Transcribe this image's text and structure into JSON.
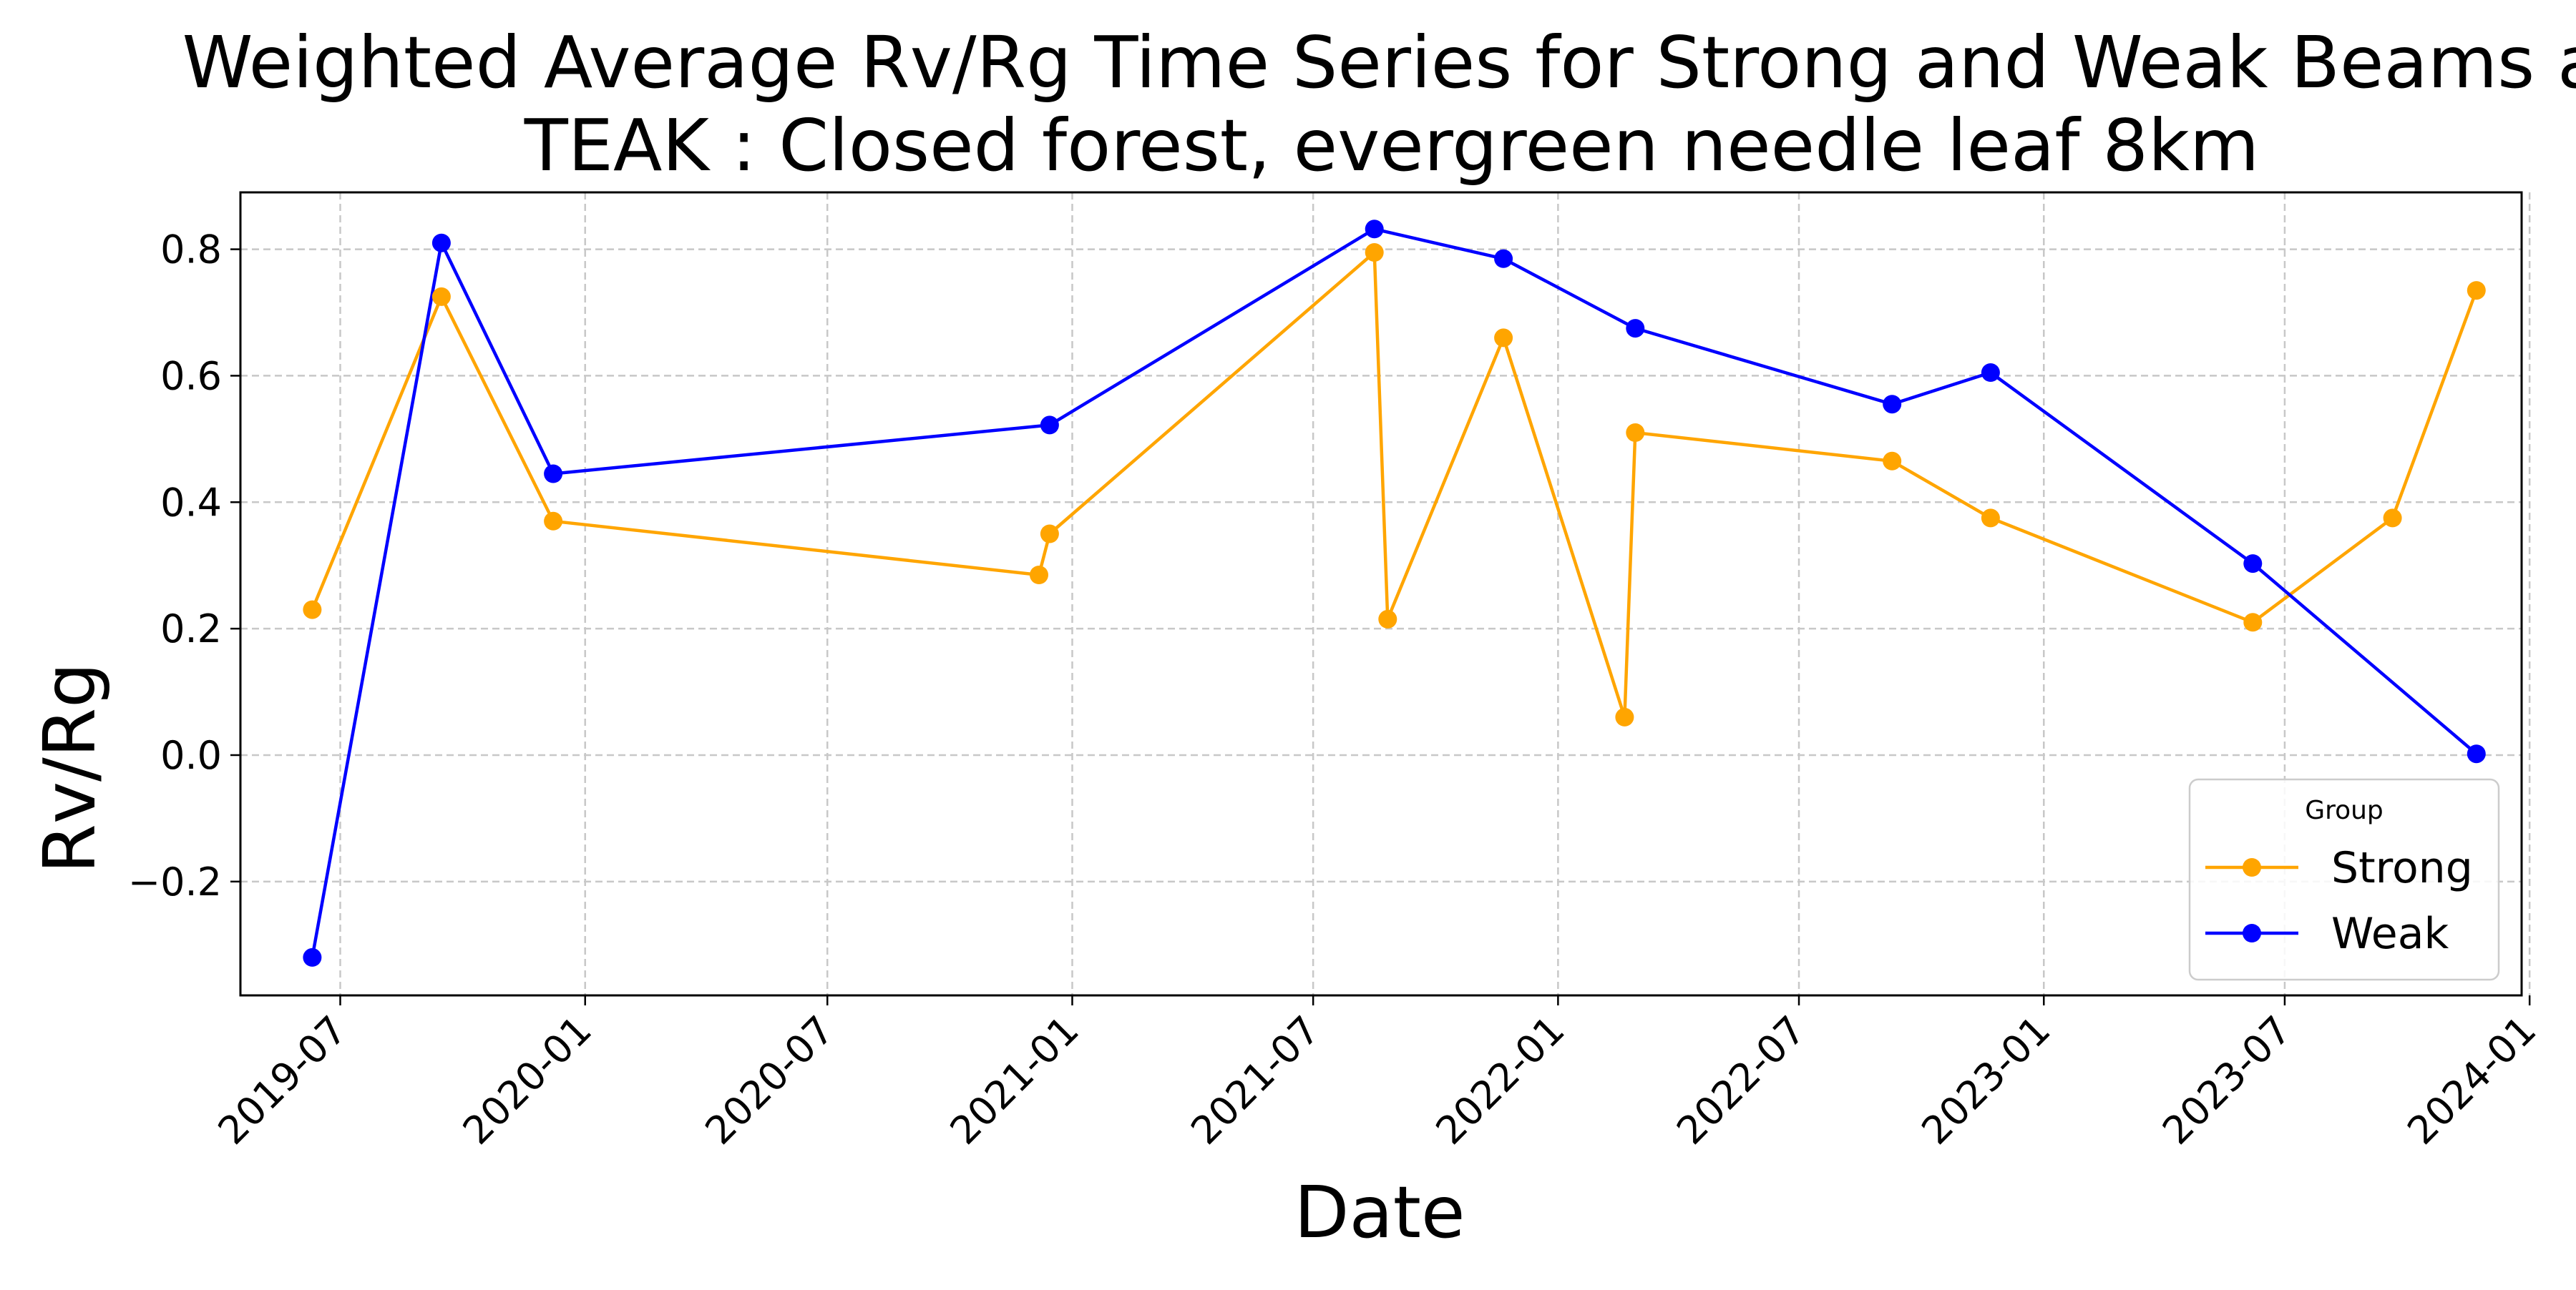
{
  "chart_data": {
    "type": "line",
    "title": "Weighted Average Rv/Rg Time Series for Strong and Weak Beams a",
    "subtitle": "TEAK : Closed forest, evergreen needle leaf 8km",
    "xlabel": "Date",
    "ylabel": "Rv/Rg",
    "xlim": [
      "2019-04-17",
      "2023-12-26"
    ],
    "ylim": [
      -0.38,
      0.89
    ],
    "x_ticks": [
      "2019-07-01",
      "2020-01-01",
      "2020-07-01",
      "2021-01-01",
      "2021-07-01",
      "2022-01-01",
      "2022-07-01",
      "2023-01-01",
      "2023-07-01",
      "2024-01-01"
    ],
    "x_tick_labels": [
      "2019-07",
      "2020-01",
      "2020-07",
      "2021-01",
      "2021-07",
      "2022-01",
      "2022-07",
      "2023-01",
      "2023-07",
      "2024-01"
    ],
    "y_ticks": [
      -0.2,
      0.0,
      0.2,
      0.4,
      0.6,
      0.8
    ],
    "y_tick_labels": [
      "−0.2",
      "0.0",
      "0.2",
      "0.4",
      "0.6",
      "0.8"
    ],
    "grid": true,
    "legend": {
      "title": "Group",
      "placement": "lower-right"
    },
    "series": [
      {
        "name": "Strong",
        "color": "#FFA500",
        "marker": "circle",
        "x": [
          "2019-06-10",
          "2019-09-15",
          "2019-12-08",
          "2020-12-07",
          "2020-12-15",
          "2021-08-16",
          "2021-08-26",
          "2021-11-21",
          "2022-02-20",
          "2022-02-28",
          "2022-09-09",
          "2022-11-22",
          "2023-06-07",
          "2023-09-20",
          "2023-11-22"
        ],
        "y": [
          0.23,
          0.725,
          0.37,
          0.285,
          0.35,
          0.795,
          0.215,
          0.66,
          0.06,
          0.51,
          0.465,
          0.375,
          0.21,
          0.375,
          0.735
        ]
      },
      {
        "name": "Weak",
        "color": "#0000FF",
        "marker": "circle",
        "x": [
          "2019-06-10",
          "2019-09-15",
          "2019-12-08",
          "2020-12-15",
          "2021-08-16",
          "2021-11-21",
          "2022-02-28",
          "2022-09-09",
          "2022-11-22",
          "2023-06-07",
          "2023-11-22"
        ],
        "y": [
          -0.32,
          0.81,
          0.445,
          0.522,
          0.832,
          0.785,
          0.675,
          0.555,
          0.605,
          0.303,
          0.002
        ]
      }
    ]
  }
}
